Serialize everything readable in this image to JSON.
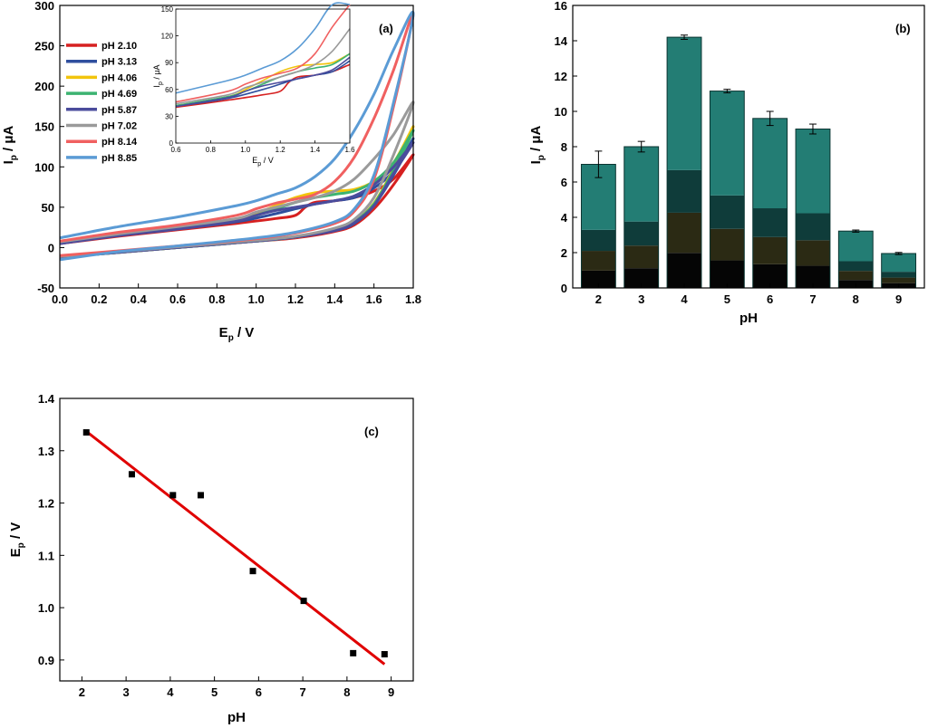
{
  "chart_data": [
    {
      "id": "a",
      "type": "line",
      "panel_label": "(a)",
      "xlabel": "E",
      "xlabel_sub": "p",
      "xlabel_unit": " / V",
      "ylabel": "I",
      "ylabel_sub": "p",
      "ylabel_unit": " / μA",
      "xlim": [
        0.0,
        1.8
      ],
      "ylim": [
        -50,
        300
      ],
      "xticks": [
        "0.0",
        "0.2",
        "0.4",
        "0.6",
        "0.8",
        "1.0",
        "1.2",
        "1.4",
        "1.6",
        "1.8"
      ],
      "yticks": [
        "-50",
        "0",
        "50",
        "100",
        "150",
        "200",
        "250",
        "300"
      ],
      "legend": "top-left",
      "series": [
        {
          "name": "pH 2.10",
          "color": "#d62020",
          "forward": [
            [
              0,
              5
            ],
            [
              0.3,
              14
            ],
            [
              0.6,
              22
            ],
            [
              0.9,
              30
            ],
            [
              1.1,
              36
            ],
            [
              1.2,
              40
            ],
            [
              1.25,
              50
            ],
            [
              1.3,
              56
            ],
            [
              1.4,
              58
            ],
            [
              1.5,
              62
            ],
            [
              1.6,
              70
            ],
            [
              1.7,
              85
            ],
            [
              1.8,
              115
            ]
          ],
          "reverse": [
            [
              1.8,
              115
            ],
            [
              1.7,
              78
            ],
            [
              1.6,
              48
            ],
            [
              1.5,
              28
            ],
            [
              1.4,
              20
            ],
            [
              1.2,
              12
            ],
            [
              1.0,
              8
            ],
            [
              0.6,
              0
            ],
            [
              0.3,
              -6
            ],
            [
              0,
              -12
            ]
          ]
        },
        {
          "name": "pH 3.13",
          "color": "#2f4f9e",
          "forward": [
            [
              0,
              5
            ],
            [
              0.3,
              15
            ],
            [
              0.6,
              23
            ],
            [
              0.9,
              32
            ],
            [
              1.1,
              42
            ],
            [
              1.2,
              48
            ],
            [
              1.3,
              54
            ],
            [
              1.4,
              58
            ],
            [
              1.5,
              62
            ],
            [
              1.6,
              74
            ],
            [
              1.7,
              95
            ],
            [
              1.8,
              135
            ]
          ],
          "reverse": [
            [
              1.8,
              135
            ],
            [
              1.7,
              90
            ],
            [
              1.6,
              52
            ],
            [
              1.5,
              30
            ],
            [
              1.4,
              21
            ],
            [
              1.2,
              13
            ],
            [
              1.0,
              8
            ],
            [
              0.6,
              0
            ],
            [
              0.3,
              -6
            ],
            [
              0,
              -12
            ]
          ]
        },
        {
          "name": "pH 4.06",
          "color": "#f2c40c",
          "forward": [
            [
              0,
              6
            ],
            [
              0.3,
              16
            ],
            [
              0.6,
              24
            ],
            [
              0.9,
              34
            ],
            [
              1.0,
              42
            ],
            [
              1.1,
              52
            ],
            [
              1.2,
              62
            ],
            [
              1.3,
              68
            ],
            [
              1.4,
              70
            ],
            [
              1.5,
              72
            ],
            [
              1.6,
              82
            ],
            [
              1.7,
              105
            ],
            [
              1.8,
              150
            ]
          ],
          "reverse": [
            [
              1.8,
              150
            ],
            [
              1.7,
              98
            ],
            [
              1.6,
              55
            ],
            [
              1.5,
              32
            ],
            [
              1.4,
              22
            ],
            [
              1.2,
              13
            ],
            [
              1.0,
              8
            ],
            [
              0.6,
              0
            ],
            [
              0.3,
              -6
            ],
            [
              0,
              -12
            ]
          ]
        },
        {
          "name": "pH 4.69",
          "color": "#3cb371",
          "forward": [
            [
              0,
              6
            ],
            [
              0.3,
              16
            ],
            [
              0.6,
              24
            ],
            [
              0.9,
              34
            ],
            [
              1.0,
              40
            ],
            [
              1.1,
              48
            ],
            [
              1.2,
              56
            ],
            [
              1.3,
              62
            ],
            [
              1.4,
              66
            ],
            [
              1.5,
              70
            ],
            [
              1.6,
              82
            ],
            [
              1.7,
              105
            ],
            [
              1.8,
              145
            ]
          ],
          "reverse": [
            [
              1.8,
              145
            ],
            [
              1.7,
              96
            ],
            [
              1.6,
              54
            ],
            [
              1.5,
              32
            ],
            [
              1.4,
              22
            ],
            [
              1.2,
              13
            ],
            [
              1.0,
              8
            ],
            [
              0.6,
              0
            ],
            [
              0.3,
              -6
            ],
            [
              0,
              -12
            ]
          ]
        },
        {
          "name": "pH 5.87",
          "color": "#4b4c9c",
          "forward": [
            [
              0,
              5
            ],
            [
              0.3,
              15
            ],
            [
              0.6,
              23
            ],
            [
              0.9,
              33
            ],
            [
              1.0,
              40
            ],
            [
              1.1,
              46
            ],
            [
              1.2,
              50
            ],
            [
              1.3,
              54
            ],
            [
              1.4,
              58
            ],
            [
              1.5,
              64
            ],
            [
              1.6,
              78
            ],
            [
              1.7,
              100
            ],
            [
              1.8,
              130
            ]
          ],
          "reverse": [
            [
              1.8,
              130
            ],
            [
              1.7,
              92
            ],
            [
              1.6,
              52
            ],
            [
              1.5,
              31
            ],
            [
              1.4,
              21
            ],
            [
              1.2,
              13
            ],
            [
              1.0,
              8
            ],
            [
              0.6,
              0
            ],
            [
              0.3,
              -6
            ],
            [
              0,
              -12
            ]
          ]
        },
        {
          "name": "pH 7.02",
          "color": "#9a9a9a",
          "forward": [
            [
              0,
              7
            ],
            [
              0.3,
              17
            ],
            [
              0.6,
              26
            ],
            [
              0.9,
              36
            ],
            [
              1.0,
              44
            ],
            [
              1.1,
              50
            ],
            [
              1.2,
              56
            ],
            [
              1.3,
              62
            ],
            [
              1.4,
              70
            ],
            [
              1.5,
              85
            ],
            [
              1.6,
              110
            ],
            [
              1.7,
              140
            ],
            [
              1.8,
              180
            ]
          ],
          "reverse": [
            [
              1.8,
              180
            ],
            [
              1.7,
              115
            ],
            [
              1.6,
              62
            ],
            [
              1.5,
              35
            ],
            [
              1.4,
              24
            ],
            [
              1.2,
              14
            ],
            [
              1.0,
              9
            ],
            [
              0.6,
              1
            ],
            [
              0.3,
              -5
            ],
            [
              0,
              -11
            ]
          ]
        },
        {
          "name": "pH 8.14",
          "color": "#f06060",
          "forward": [
            [
              0,
              8
            ],
            [
              0.3,
              19
            ],
            [
              0.6,
              28
            ],
            [
              0.9,
              40
            ],
            [
              1.0,
              48
            ],
            [
              1.1,
              55
            ],
            [
              1.2,
              60
            ],
            [
              1.3,
              66
            ],
            [
              1.4,
              82
            ],
            [
              1.5,
              112
            ],
            [
              1.6,
              160
            ],
            [
              1.7,
              220
            ],
            [
              1.8,
              290
            ]
          ],
          "reverse": [
            [
              1.8,
              290
            ],
            [
              1.7,
              175
            ],
            [
              1.6,
              85
            ],
            [
              1.5,
              45
            ],
            [
              1.4,
              30
            ],
            [
              1.2,
              18
            ],
            [
              1.0,
              11
            ],
            [
              0.6,
              2
            ],
            [
              0.3,
              -4
            ],
            [
              0,
              -10
            ]
          ]
        },
        {
          "name": "pH 8.85",
          "color": "#5b9bd5",
          "forward": [
            [
              0,
              12
            ],
            [
              0.3,
              26
            ],
            [
              0.6,
              38
            ],
            [
              0.9,
              52
            ],
            [
              1.0,
              58
            ],
            [
              1.1,
              66
            ],
            [
              1.2,
              74
            ],
            [
              1.3,
              88
            ],
            [
              1.4,
              110
            ],
            [
              1.5,
              145
            ],
            [
              1.6,
              190
            ],
            [
              1.7,
              245
            ],
            [
              1.8,
              290
            ]
          ],
          "reverse": [
            [
              1.8,
              290
            ],
            [
              1.7,
              180
            ],
            [
              1.6,
              90
            ],
            [
              1.5,
              48
            ],
            [
              1.4,
              32
            ],
            [
              1.2,
              19
            ],
            [
              1.0,
              12
            ],
            [
              0.6,
              2
            ],
            [
              0.3,
              -5
            ],
            [
              0,
              -15
            ]
          ]
        }
      ],
      "inset": {
        "xlabel": "E",
        "xlabel_sub": "p",
        "xlabel_unit": " / V",
        "ylabel": "I",
        "ylabel_sub": "p",
        "ylabel_unit": " / μA",
        "xlim": [
          0.6,
          1.6
        ],
        "ylim": [
          0,
          150
        ],
        "xticks": [
          "0.6",
          "0.8",
          "1.0",
          "1.2",
          "1.4",
          "1.6"
        ],
        "yticks": [
          "0",
          "30",
          "60",
          "90",
          "120",
          "150"
        ]
      }
    },
    {
      "id": "b",
      "type": "bar",
      "panel_label": "(b)",
      "xlabel": "pH",
      "ylabel": "I",
      "ylabel_sub": "p",
      "ylabel_unit": " / μA",
      "categories": [
        "2",
        "3",
        "4",
        "5",
        "6",
        "7",
        "8",
        "9"
      ],
      "values": [
        7.0,
        8.0,
        14.2,
        11.15,
        9.6,
        9.0,
        3.22,
        1.95
      ],
      "errors": [
        0.75,
        0.3,
        0.12,
        0.1,
        0.4,
        0.28,
        0.06,
        0.06
      ],
      "ylim": [
        0,
        16
      ],
      "yticks": [
        "0",
        "2",
        "4",
        "6",
        "8",
        "10",
        "12",
        "14",
        "16"
      ],
      "bar_color": "#237d74",
      "band_colors": [
        "#050505",
        "#2b2a14",
        "#0f3c3a",
        "#237d74"
      ],
      "band_fractions": [
        0.14,
        0.3,
        0.47
      ]
    },
    {
      "id": "c",
      "type": "scatter",
      "panel_label": "(c)",
      "xlabel": "pH",
      "ylabel": "E",
      "ylabel_sub": "p",
      "ylabel_unit": " / V",
      "x": [
        2.1,
        3.13,
        4.06,
        4.69,
        5.87,
        7.02,
        8.14,
        8.85
      ],
      "y": [
        1.335,
        1.255,
        1.215,
        1.215,
        1.07,
        1.013,
        0.913,
        0.911
      ],
      "fit": {
        "x": [
          2.1,
          8.85
        ],
        "y": [
          1.337,
          0.892
        ],
        "color": "#e00000"
      },
      "xlim": [
        1.5,
        9.5
      ],
      "ylim": [
        0.86,
        1.4
      ],
      "xticks": [
        "2",
        "3",
        "4",
        "5",
        "6",
        "7",
        "8",
        "9"
      ],
      "yticks": [
        "0.9",
        "1.0",
        "1.1",
        "1.2",
        "1.3",
        "1.4"
      ]
    }
  ]
}
